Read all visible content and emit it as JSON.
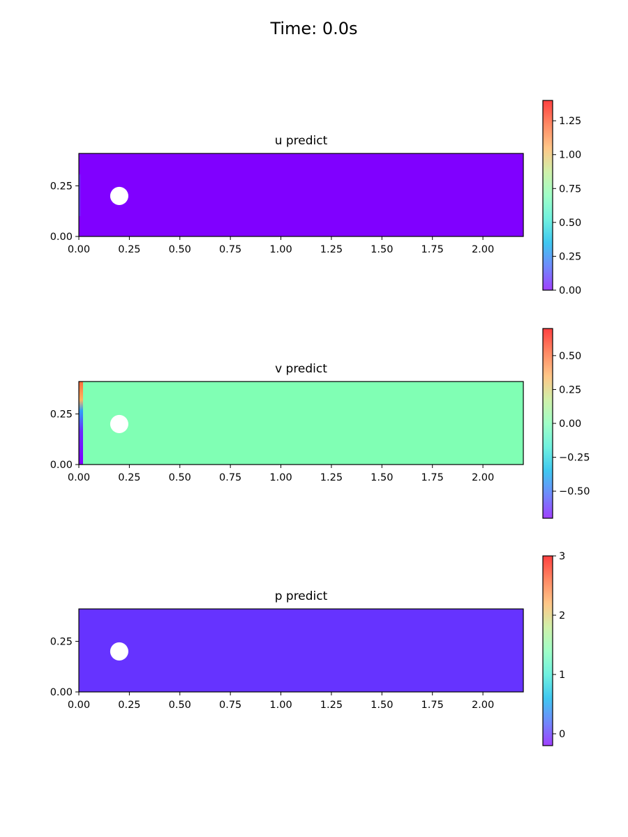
{
  "figure": {
    "title": "Time: 0.0s"
  },
  "colors": {
    "axes_frame": "#000000",
    "obstacle": "#ffffff"
  },
  "chart_data": [
    {
      "type": "heatmap",
      "title": "u predict",
      "xlim": [
        0,
        2.2
      ],
      "ylim": [
        0,
        0.41
      ],
      "x_ticks": [
        "0.00",
        "0.25",
        "0.50",
        "0.75",
        "1.00",
        "1.25",
        "1.50",
        "1.75",
        "2.00"
      ],
      "x_tick_values": [
        0,
        0.25,
        0.5,
        0.75,
        1.0,
        1.25,
        1.5,
        1.75,
        2.0
      ],
      "y_ticks": [
        "0.00",
        "0.25"
      ],
      "y_tick_values": [
        0,
        0.25
      ],
      "colormap": "rainbow",
      "field_value": 0.0,
      "field_color": "#8000ff",
      "obstacle": {
        "shape": "circle",
        "cx": 0.2,
        "cy": 0.2,
        "r": 0.05
      },
      "colorbar": {
        "range": [
          0.0,
          1.4
        ],
        "ticks": [
          "0.00",
          "0.25",
          "0.50",
          "0.75",
          "1.00",
          "1.25"
        ],
        "tick_values": [
          0.0,
          0.25,
          0.5,
          0.75,
          1.0,
          1.25
        ]
      }
    },
    {
      "type": "heatmap",
      "title": "v predict",
      "xlim": [
        0,
        2.2
      ],
      "ylim": [
        0,
        0.41
      ],
      "x_ticks": [
        "0.00",
        "0.25",
        "0.50",
        "0.75",
        "1.00",
        "1.25",
        "1.50",
        "1.75",
        "2.00"
      ],
      "x_tick_values": [
        0,
        0.25,
        0.5,
        0.75,
        1.0,
        1.25,
        1.5,
        1.75,
        2.0
      ],
      "y_ticks": [
        "0.00",
        "0.25"
      ],
      "y_tick_values": [
        0,
        0.25
      ],
      "colormap": "rainbow",
      "field_value": 0.0,
      "field_color": "#80ffb4",
      "inlet_edge": true,
      "obstacle": {
        "shape": "circle",
        "cx": 0.2,
        "cy": 0.2,
        "r": 0.05
      },
      "colorbar": {
        "range": [
          -0.7,
          0.7
        ],
        "ticks": [
          "−0.50",
          "−0.25",
          "0.00",
          "0.25",
          "0.50"
        ],
        "tick_values": [
          -0.5,
          -0.25,
          0.0,
          0.25,
          0.5
        ]
      }
    },
    {
      "type": "heatmap",
      "title": "p predict",
      "xlim": [
        0,
        2.2
      ],
      "ylim": [
        0,
        0.41
      ],
      "x_ticks": [
        "0.00",
        "0.25",
        "0.50",
        "0.75",
        "1.00",
        "1.25",
        "1.50",
        "1.75",
        "2.00"
      ],
      "x_tick_values": [
        0,
        0.25,
        0.5,
        0.75,
        1.0,
        1.25,
        1.5,
        1.75,
        2.0
      ],
      "y_ticks": [
        "0.00",
        "0.25"
      ],
      "y_tick_values": [
        0,
        0.25
      ],
      "colormap": "rainbow",
      "field_value": 0.0,
      "field_color": "#6633ff",
      "obstacle": {
        "shape": "circle",
        "cx": 0.2,
        "cy": 0.2,
        "r": 0.05
      },
      "colorbar": {
        "range": [
          -0.2,
          3.0
        ],
        "ticks": [
          "0",
          "1",
          "2",
          "3"
        ],
        "tick_values": [
          0,
          1,
          2,
          3
        ]
      }
    }
  ]
}
